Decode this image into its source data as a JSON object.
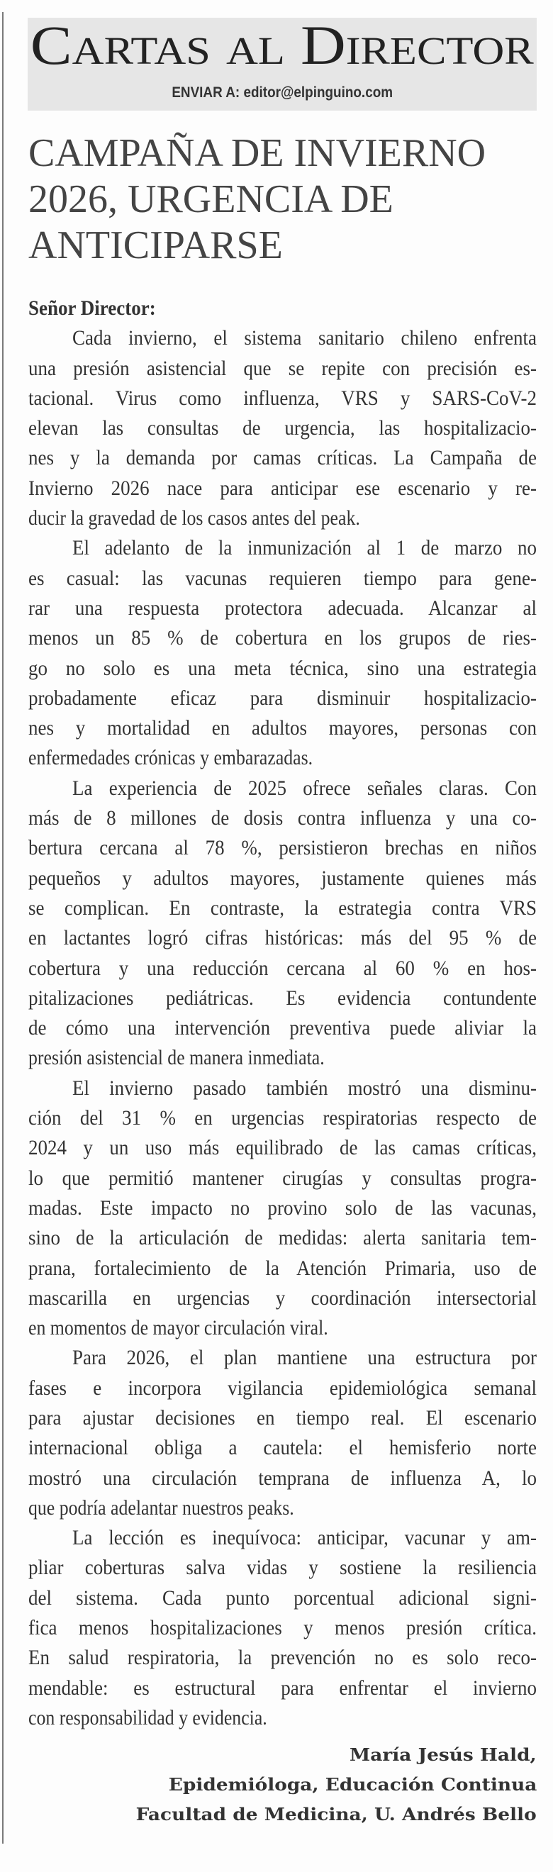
{
  "section": {
    "title": "Cartas al Director",
    "send_to": "ENVIAR A: editor@elpinguino.com"
  },
  "headline": {
    "lines": [
      "CAMPAÑA DE INVIERNO",
      "2026, URGENCIA DE",
      "ANTICIPARSE"
    ]
  },
  "letter": {
    "salutation": "Señor Director:",
    "paragraphs": [
      {
        "lines": [
          "Cada invierno, el sistema sanitario chileno enfrenta",
          "una presión asistencial que se repite con precisión es-",
          "tacional. Virus como influenza, VRS y SARS-CoV-2",
          "elevan las consultas de urgencia, las hospitalizacio-",
          "nes y la demanda por camas críticas. La Campaña de",
          "Invierno 2026 nace para anticipar ese escenario y re-",
          "ducir la gravedad de los casos antes del peak."
        ]
      },
      {
        "lines": [
          "El adelanto de la inmunización al 1 de marzo no",
          "es casual: las vacunas requieren tiempo para gene-",
          "rar una respuesta protectora adecuada. Alcanzar al",
          "menos un 85 % de cobertura en los grupos de ries-",
          "go no solo es una meta técnica, sino una estrategia",
          "probadamente eficaz para disminuir hospitalizacio-",
          "nes y mortalidad en adultos mayores, personas con",
          "enfermedades crónicas y embarazadas."
        ]
      },
      {
        "lines": [
          "La experiencia de 2025 ofrece señales claras. Con",
          "más de 8 millones de dosis contra influenza y una co-",
          "bertura cercana al 78 %, persistieron brechas en niños",
          "pequeños y adultos mayores, justamente quienes más",
          "se complican. En contraste, la estrategia contra VRS",
          "en lactantes logró cifras históricas: más del 95 % de",
          "cobertura y una reducción cercana al 60 % en hos-",
          "pitalizaciones pediátricas. Es evidencia contundente",
          "de cómo una intervención preventiva puede aliviar la",
          "presión asistencial de manera inmediata."
        ]
      },
      {
        "lines": [
          "El invierno pasado también mostró una disminu-",
          "ción del 31 % en urgencias respiratorias respecto de",
          "2024 y un uso más equilibrado de las camas críticas,",
          "lo que permitió mantener cirugías y consultas progra-",
          "madas. Este impacto no provino solo de las vacunas,",
          "sino de la articulación de medidas: alerta sanitaria tem-",
          "prana, fortalecimiento de la Atención Primaria, uso de",
          "mascarilla en urgencias y coordinación intersectorial",
          "en momentos de mayor circulación viral."
        ]
      },
      {
        "lines": [
          "Para 2026, el plan mantiene una estructura por",
          "fases e incorpora vigilancia epidemiológica semanal",
          "para ajustar decisiones en tiempo real. El escenario",
          "internacional obliga a cautela: el hemisferio norte",
          "mostró una circulación temprana de influenza A, lo",
          "que podría adelantar nuestros peaks."
        ]
      },
      {
        "lines": [
          "La lección es inequívoca: anticipar, vacunar y am-",
          "pliar coberturas salva vidas y sostiene la resiliencia",
          "del sistema. Cada punto porcentual adicional signi-",
          "fica menos hospitalizaciones y menos presión crítica.",
          "En salud respiratoria, la prevención no es solo reco-",
          "mendable: es estructural para enfrentar el invierno",
          "con responsabilidad y evidencia."
        ]
      }
    ]
  },
  "signature": {
    "name": "María Jesús Hald,",
    "role": "Epidemióloga, Educación Continua",
    "institution": "Facultad de Medicina, U. Andrés Bello"
  }
}
